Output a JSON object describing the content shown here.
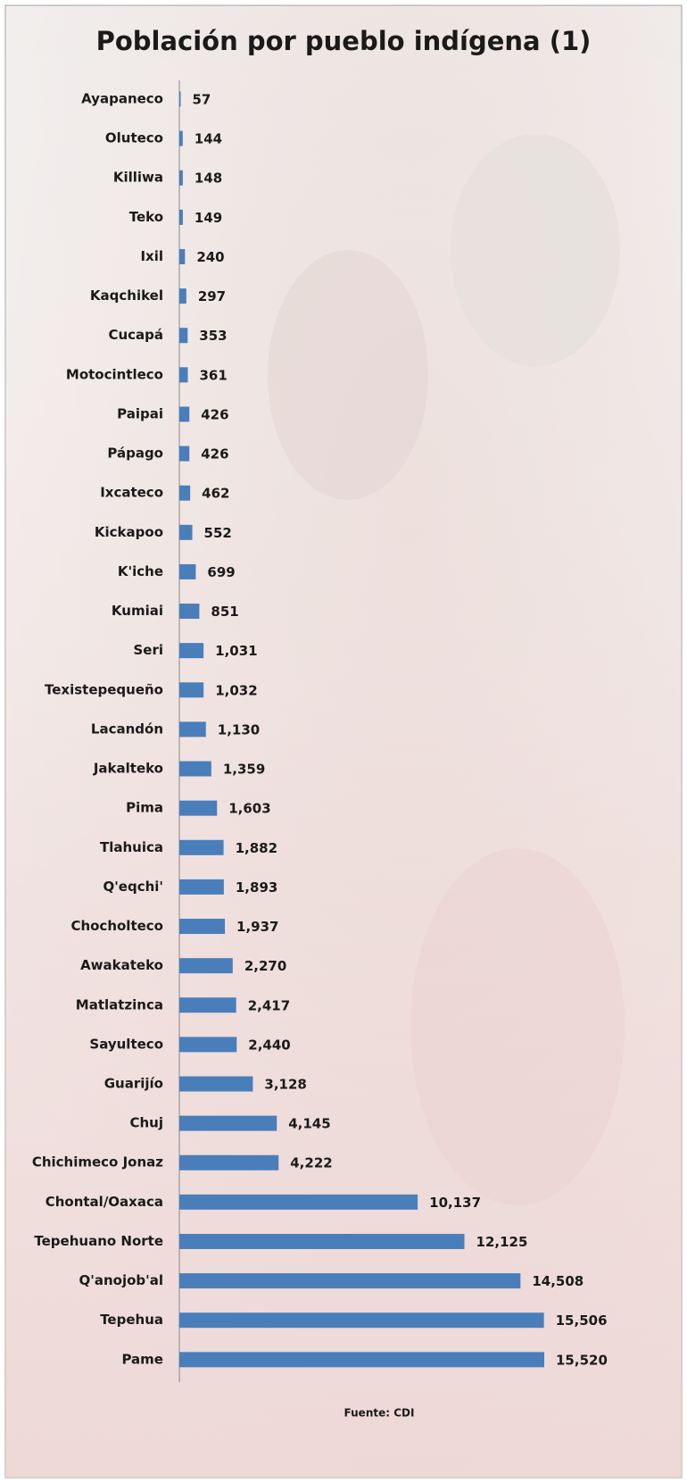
{
  "chart_data": {
    "type": "barh",
    "title": "Población por pueblo indígena (1)",
    "source": "Fuente: CDI",
    "categories": [
      "Ayapaneco",
      "Oluteco",
      "Killiwa",
      "Teko",
      "Ixil",
      "Kaqchikel",
      "Cucapá",
      "Motocintleco",
      "Paipai",
      "Pápago",
      "Ixcateco",
      "Kickapoo",
      "K'iche",
      "Kumiai",
      "Seri",
      "Texistepequeño",
      "Lacandón",
      "Jakalteko",
      "Pima",
      "Tlahuica",
      "Q'eqchi'",
      "Chocholteco",
      "Awakateko",
      "Matlatzinca",
      "Sayulteco",
      "Guarijío",
      "Chuj",
      "Chichimeco Jonaz",
      "Chontal/Oaxaca",
      "Tepehuano Norte",
      "Q'anojob'al",
      "Tepehua",
      "Pame"
    ],
    "values": [
      57,
      144,
      148,
      149,
      240,
      297,
      353,
      361,
      426,
      426,
      462,
      552,
      699,
      851,
      1031,
      1032,
      1130,
      1359,
      1603,
      1882,
      1893,
      1937,
      2270,
      2417,
      2440,
      3128,
      4145,
      4222,
      10137,
      12125,
      14508,
      15506,
      15520
    ],
    "value_labels": [
      "57",
      "144",
      "148",
      "149",
      "240",
      "297",
      "353",
      "361",
      "426",
      "426",
      "462",
      "552",
      "699",
      "851",
      "1,031",
      "1,032",
      "1,130",
      "1,359",
      "1,603",
      "1,882",
      "1,893",
      "1,937",
      "2,270",
      "2,417",
      "2,440",
      "3,128",
      "4,145",
      "4,222",
      "10,137",
      "12,125",
      "14,508",
      "15,506",
      "15,520"
    ],
    "color": "#4a7ebb"
  }
}
